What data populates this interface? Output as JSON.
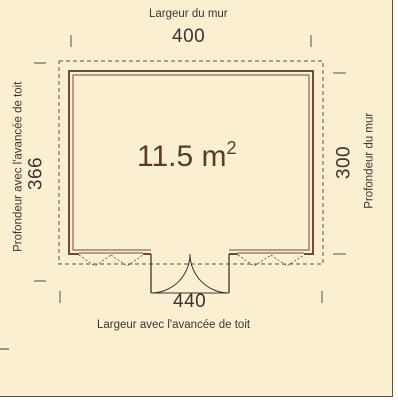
{
  "colors": {
    "background": "#fbefd2",
    "wall": "#6e4a3c",
    "dimension_line": "#55504c"
  },
  "top": {
    "caption": "Largeur du mur",
    "value": "400"
  },
  "bottom": {
    "caption": "Largeur avec l'avancée de toit",
    "value": "440"
  },
  "left": {
    "caption": "Profondeur avec l'avancée de toit",
    "value": "366"
  },
  "right": {
    "caption": "Profondeur du mur",
    "value": "300"
  },
  "area": {
    "value": "11.5 m",
    "unit_exponent": "2"
  }
}
